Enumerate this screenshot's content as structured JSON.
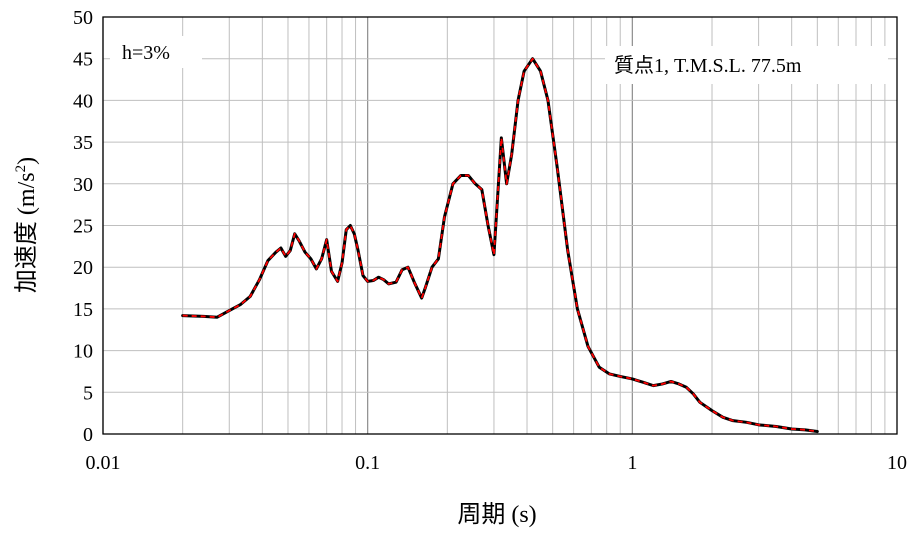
{
  "chart_data": {
    "type": "line",
    "title": "",
    "xlabel": "周期 (s)",
    "ylabel": "加速度 (m/s²)",
    "ylabel_base": "加速度 (m/s",
    "ylabel_sup": "2",
    "ylabel_end": ")",
    "x_scale": "log",
    "xlim": [
      0.01,
      10
    ],
    "ylim": [
      0,
      50
    ],
    "x_ticks": [
      0.01,
      0.1,
      1,
      10
    ],
    "x_tick_labels": [
      "0.01",
      "0.1",
      "1",
      "10"
    ],
    "y_ticks": [
      0,
      5,
      10,
      15,
      20,
      25,
      30,
      35,
      40,
      45,
      50
    ],
    "y_tick_labels": [
      "0",
      "5",
      "10",
      "15",
      "20",
      "25",
      "30",
      "35",
      "40",
      "45",
      "50"
    ],
    "grid": true,
    "annotations": {
      "damping": "h=3%",
      "location": "質点1, T.M.S.L. 77.5m"
    },
    "colors": {
      "series_a": "#000000",
      "series_b": "#ff0000",
      "grid": "#bfbfbf",
      "axis": "#000000"
    },
    "series": [
      {
        "style": "solid",
        "x": [
          0.02,
          0.024,
          0.027,
          0.03,
          0.033,
          0.036,
          0.039,
          0.042,
          0.045,
          0.047,
          0.049,
          0.051,
          0.053,
          0.055,
          0.058,
          0.061,
          0.064,
          0.067,
          0.07,
          0.073,
          0.077,
          0.08,
          0.083,
          0.086,
          0.089,
          0.092,
          0.096,
          0.1,
          0.105,
          0.11,
          0.115,
          0.12,
          0.128,
          0.135,
          0.142,
          0.15,
          0.16,
          0.165,
          0.175,
          0.185,
          0.195,
          0.21,
          0.225,
          0.24,
          0.255,
          0.27,
          0.285,
          0.3,
          0.32,
          0.335,
          0.35,
          0.37,
          0.39,
          0.42,
          0.45,
          0.48,
          0.52,
          0.57,
          0.62,
          0.68,
          0.75,
          0.82,
          0.9,
          1.0,
          1.1,
          1.2,
          1.3,
          1.4,
          1.5,
          1.6,
          1.7,
          1.8,
          2.0,
          2.2,
          2.4,
          2.7,
          3.0,
          3.5,
          4.0,
          4.5,
          5.0
        ],
        "values": [
          14.2,
          14.1,
          14.0,
          14.8,
          15.5,
          16.5,
          18.5,
          20.8,
          21.8,
          22.3,
          21.3,
          22.0,
          24.0,
          23.2,
          21.8,
          21.0,
          19.8,
          21.0,
          23.3,
          19.5,
          18.3,
          20.5,
          24.5,
          25.0,
          24.0,
          22.0,
          19.0,
          18.3,
          18.4,
          18.8,
          18.5,
          18.0,
          18.2,
          19.7,
          20.0,
          18.2,
          16.3,
          17.5,
          20.0,
          21.0,
          26.0,
          30.0,
          31.0,
          31.0,
          30.0,
          29.3,
          25.0,
          21.5,
          35.5,
          30.0,
          33.5,
          40.0,
          43.5,
          45.0,
          43.5,
          40.0,
          32.0,
          22.0,
          15.0,
          10.5,
          8.0,
          7.2,
          6.9,
          6.6,
          6.2,
          5.8,
          6.0,
          6.3,
          6.0,
          5.6,
          4.8,
          3.8,
          2.8,
          2.0,
          1.6,
          1.4,
          1.1,
          0.9,
          0.6,
          0.5,
          0.3
        ]
      }
    ]
  }
}
